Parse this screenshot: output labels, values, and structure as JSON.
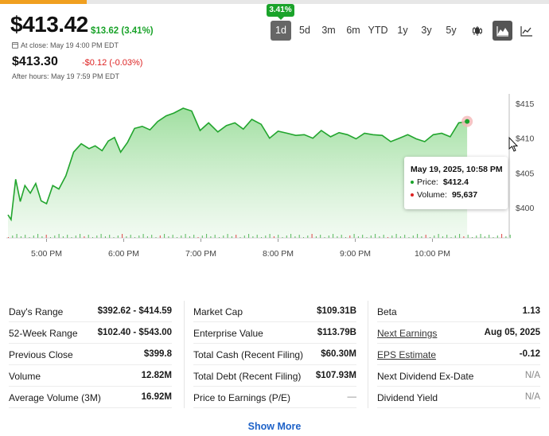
{
  "quote": {
    "price": "$413.42",
    "change": "$13.62 (3.41%)",
    "close_label": "At close: May 19 4:00 PM EDT",
    "after_hours_price": "$413.30",
    "after_hours_change": "-$0.12 (-0.03%)",
    "after_hours_label": "After hours: May 19 7:59 PM EDT",
    "badge": "3.41%"
  },
  "timeframes": [
    "1d",
    "5d",
    "3m",
    "6m",
    "YTD",
    "1y",
    "3y",
    "5y"
  ],
  "active_timeframe": "1d",
  "chart_types": [
    "candlestick-icon",
    "mountain-chart-icon",
    "line-chart-icon"
  ],
  "colors": {
    "up": "#1aa32a",
    "down": "#dd2222",
    "link": "#1e62c8"
  },
  "chart_data": {
    "type": "area",
    "x_labels": [
      "5:00 PM",
      "6:00 PM",
      "7:00 PM",
      "8:00 PM",
      "9:00 PM",
      "10:00 PM"
    ],
    "y_ticks": [
      "$415",
      "$410",
      "$405",
      "$400"
    ],
    "ylim": [
      395.8,
      417.5
    ],
    "x": [
      0.0,
      0.04,
      0.1,
      0.16,
      0.22,
      0.29,
      0.36,
      0.43,
      0.5,
      0.58,
      0.66,
      0.75,
      0.85,
      0.95,
      1.05,
      1.13,
      1.22,
      1.3,
      1.38,
      1.46,
      1.55,
      1.64,
      1.74,
      1.84,
      1.94,
      2.05,
      2.15,
      2.27,
      2.38,
      2.49,
      2.6,
      2.72,
      2.83,
      2.94,
      3.05,
      3.16,
      3.28,
      3.39,
      3.5,
      3.62,
      3.73,
      3.84,
      3.95,
      4.06,
      4.18,
      4.29,
      4.4,
      4.51,
      4.62,
      4.73,
      4.85,
      4.96,
      5.07,
      5.18,
      5.29,
      5.4,
      5.51,
      5.62,
      5.73,
      5.84,
      5.95
    ],
    "values": [
      399.0,
      398.3,
      404.1,
      400.9,
      403.2,
      402.1,
      403.5,
      401.0,
      400.6,
      403.2,
      402.7,
      404.6,
      408.0,
      409.2,
      408.5,
      408.9,
      408.2,
      409.6,
      410.1,
      408.0,
      409.4,
      411.4,
      411.7,
      411.2,
      412.4,
      413.2,
      413.6,
      414.3,
      413.9,
      411.1,
      412.2,
      410.9,
      411.8,
      412.2,
      411.3,
      412.7,
      412.0,
      410.0,
      411.0,
      410.7,
      410.4,
      410.5,
      410.0,
      411.1,
      410.2,
      410.8,
      410.5,
      409.9,
      410.7,
      410.5,
      410.4,
      409.5,
      410.0,
      410.5,
      409.9,
      409.5,
      410.5,
      410.7,
      410.2,
      412.2,
      412.4
    ],
    "tooltip": {
      "date": "May 19, 2025, 10:58 PM",
      "price_label": "Price:",
      "price": "$412.4",
      "volume_label": "Volume:",
      "volume": "95,637"
    }
  },
  "stats": {
    "col1": [
      {
        "label": "Day's Range",
        "value": "$392.62 - $414.59"
      },
      {
        "label": "52-Week Range",
        "value": "$102.40 - $543.00"
      },
      {
        "label": "Previous Close",
        "value": "$399.8"
      },
      {
        "label": "Volume",
        "value": "12.82M"
      },
      {
        "label": "Average Volume (3M)",
        "value": "16.92M"
      }
    ],
    "col2": [
      {
        "label": "Market Cap",
        "value": "$109.31B"
      },
      {
        "label": "Enterprise Value",
        "value": "$113.79B"
      },
      {
        "label": "Total Cash (Recent Filing)",
        "value": "$60.30M"
      },
      {
        "label": "Total Debt (Recent Filing)",
        "value": "$107.93M"
      },
      {
        "label": "Price to Earnings (P/E)",
        "value": "—"
      }
    ],
    "col3": [
      {
        "label": "Beta",
        "value": "1.13"
      },
      {
        "label": "Next Earnings",
        "value": "Aug 05, 2025"
      },
      {
        "label": "EPS Estimate",
        "value": "-0.12"
      },
      {
        "label": "Next Dividend Ex-Date",
        "value": "N/A"
      },
      {
        "label": "Dividend Yield",
        "value": "N/A"
      }
    ]
  },
  "show_more": "Show More"
}
